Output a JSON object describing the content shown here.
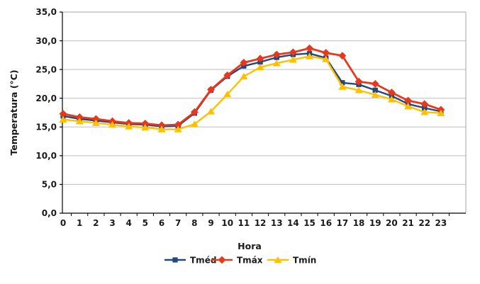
{
  "chart_data": {
    "type": "line",
    "title": "",
    "xlabel": "Hora",
    "ylabel": "Temperatura (°C)",
    "x": [
      0,
      1,
      2,
      3,
      4,
      5,
      6,
      7,
      8,
      9,
      10,
      11,
      12,
      13,
      14,
      15,
      16,
      17,
      18,
      19,
      20,
      21,
      22,
      23
    ],
    "ylim": [
      0,
      35
    ],
    "ytick_step": 5,
    "ytick_labels": [
      "0,0",
      "5,0",
      "10,0",
      "15,0",
      "20,0",
      "25,0",
      "30,0",
      "35,0"
    ],
    "grid": true,
    "legend_position": "bottom",
    "series": [
      {
        "name": "Tméd",
        "marker": "square",
        "color": "#24487E",
        "values": [
          16.9,
          16.4,
          16.1,
          15.8,
          15.5,
          15.4,
          15.1,
          15.2,
          17.4,
          21.4,
          23.8,
          25.6,
          26.3,
          27.1,
          27.6,
          27.8,
          27.0,
          22.7,
          22.4,
          21.4,
          20.4,
          19.0,
          18.3,
          17.7
        ]
      },
      {
        "name": "Tmáx",
        "marker": "diamond",
        "color": "#E5391E",
        "values": [
          17.3,
          16.7,
          16.4,
          16.0,
          15.7,
          15.6,
          15.3,
          15.4,
          17.6,
          21.5,
          24.0,
          26.2,
          26.9,
          27.6,
          28.0,
          28.7,
          27.9,
          27.4,
          22.9,
          22.5,
          21.0,
          19.6,
          19.0,
          18.0
        ]
      },
      {
        "name": "Tmín",
        "marker": "triangle",
        "color": "#FFC000",
        "values": [
          16.3,
          16.0,
          15.7,
          15.4,
          15.1,
          14.9,
          14.6,
          14.6,
          15.5,
          17.7,
          20.7,
          23.8,
          25.4,
          26.1,
          26.7,
          27.3,
          26.8,
          22.0,
          21.4,
          20.6,
          19.8,
          18.6,
          17.6,
          17.4
        ]
      }
    ]
  },
  "legend": {
    "items": [
      {
        "label": "Tméd",
        "marker": "square",
        "color": "#24487E"
      },
      {
        "label": "Tmáx",
        "marker": "diamond",
        "color": "#E5391E"
      },
      {
        "label": "Tmín",
        "marker": "triangle",
        "color": "#FFC000"
      }
    ]
  },
  "colors": {
    "background": "#FFFFFF",
    "gridline": "#BFBFBF",
    "plot_border": "#A6A6A6",
    "axis": "#000000",
    "text": "#1A1A1A"
  }
}
